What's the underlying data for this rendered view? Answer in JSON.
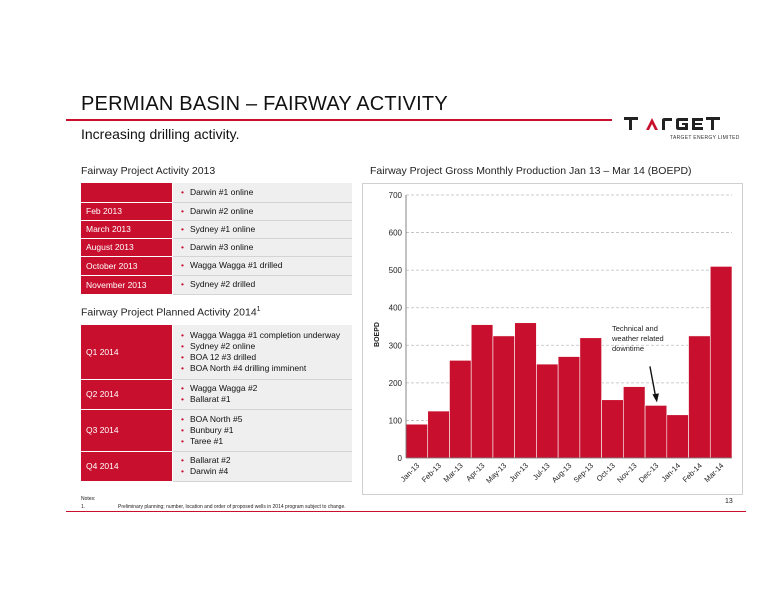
{
  "header": {
    "title": "PERMIAN BASIN – FAIRWAY ACTIVITY",
    "subtitle": "Increasing drilling activity.",
    "logo_tagline": "TARGET ENERGY LIMITED"
  },
  "activity_2013": {
    "heading": "Fairway Project Activity 2013",
    "rows": [
      {
        "label": "",
        "items": [
          "Darwin #1 online"
        ]
      },
      {
        "label": "Feb 2013",
        "items": [
          "Darwin #2 online"
        ]
      },
      {
        "label": "March 2013",
        "items": [
          "Sydney #1 online"
        ]
      },
      {
        "label": "August 2013",
        "items": [
          "Darwin #3 online"
        ]
      },
      {
        "label": "October 2013",
        "items": [
          "Wagga Wagga #1 drilled"
        ]
      },
      {
        "label": "November 2013",
        "items": [
          "Sydney #2 drilled"
        ]
      }
    ]
  },
  "activity_2014": {
    "heading": "Fairway Project Planned Activity 2014",
    "heading_sup": "1",
    "rows": [
      {
        "label": "Q1 2014",
        "items": [
          "Wagga Wagga #1 completion underway",
          "Sydney #2 online",
          "BOA 12 #3 drilled",
          "BOA North #4 drilling imminent"
        ]
      },
      {
        "label": "Q2 2014",
        "items": [
          "Wagga Wagga #2",
          "Ballarat #1"
        ]
      },
      {
        "label": "Q3 2014",
        "items": [
          "BOA North #5",
          "Bunbury #1",
          "Taree #1"
        ]
      },
      {
        "label": "Q4 2014",
        "items": [
          "Ballarat #2",
          "Darwin #4"
        ]
      }
    ]
  },
  "footer": {
    "notes_label": "Notes:",
    "note_number": "1.",
    "note_text": "Preliminary planning; number, location and order of proposed wells in 2014 program subject to change.",
    "page_number": "13"
  },
  "colors": {
    "accent": "#c8102e",
    "bar": "#c8102e",
    "table_bg": "#efefef"
  },
  "chart_data": {
    "type": "bar",
    "title": "Fairway Project Gross Monthly Production Jan 13 – Mar 14 (BOEPD)",
    "ylabel": "BOEPD",
    "xlabel": "",
    "categories": [
      "Jan-13",
      "Feb-13",
      "Mar-13",
      "Apr-13",
      "May-13",
      "Jun-13",
      "Jul-13",
      "Aug-13",
      "Sep-13",
      "Oct-13",
      "Nov-13",
      "Dec-13",
      "Jan-14",
      "Feb-14",
      "Mar-14"
    ],
    "values": [
      90,
      125,
      260,
      355,
      325,
      360,
      250,
      270,
      320,
      155,
      190,
      140,
      115,
      325,
      510
    ],
    "ylim": [
      0,
      700
    ],
    "yticks": [
      0,
      100,
      200,
      300,
      400,
      500,
      600,
      700
    ],
    "grid": true,
    "annotation": {
      "lines": [
        "Technical and",
        "weather related",
        "downtime"
      ],
      "category": "Dec-13"
    }
  }
}
